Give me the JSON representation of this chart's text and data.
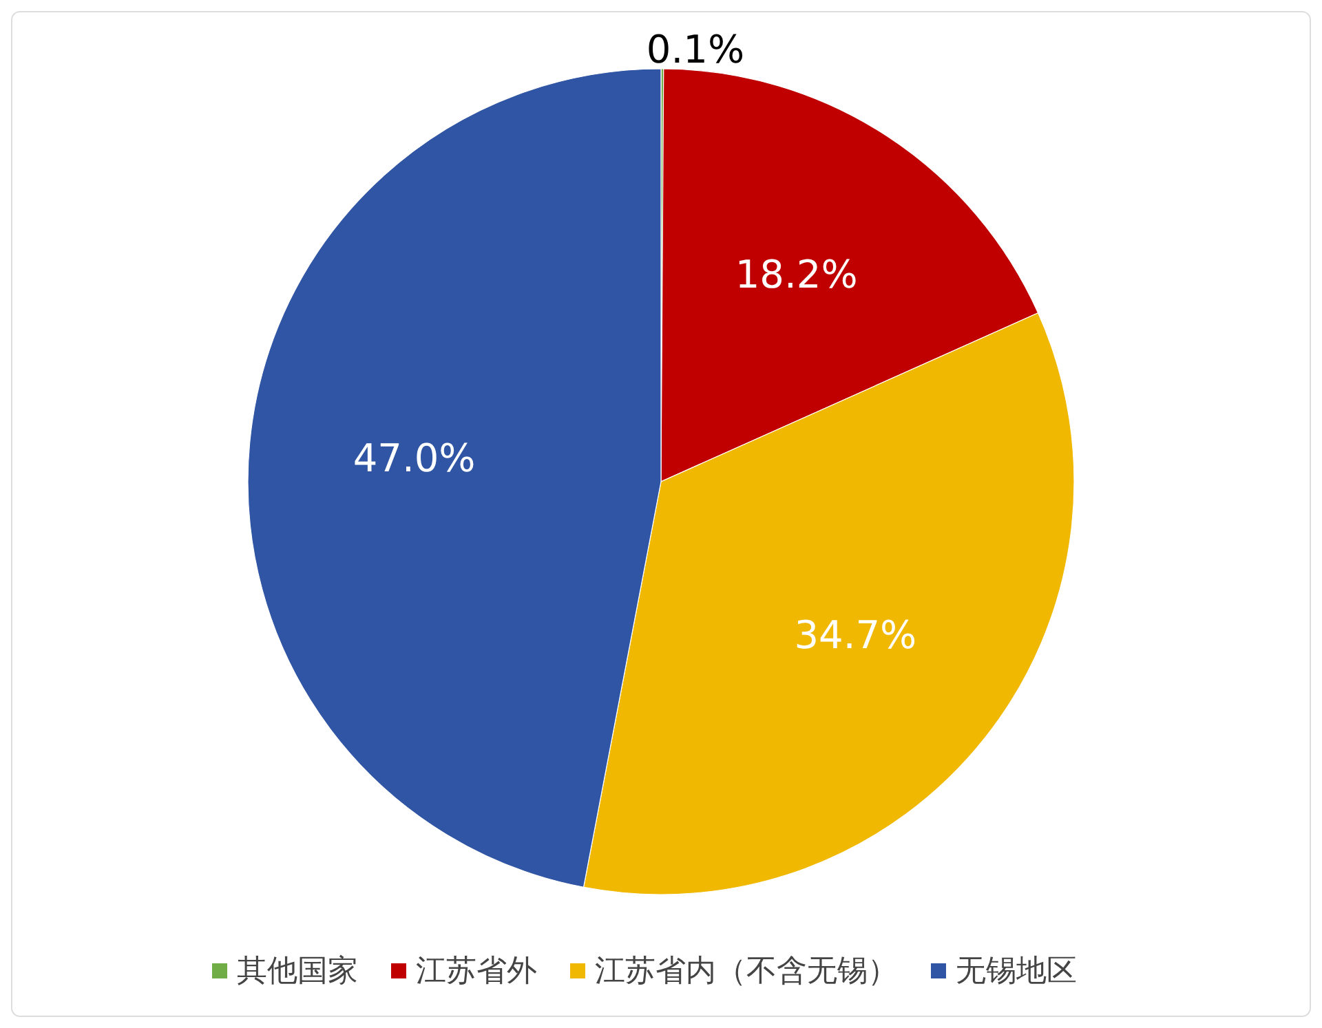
{
  "chart_data": {
    "type": "pie",
    "categories": [
      "其他国家",
      "江苏省外",
      "江苏省内（不含无锡）",
      "无锡地区"
    ],
    "values": [
      0.1,
      18.2,
      34.7,
      47.0
    ],
    "colors": [
      "#70ad47",
      "#c00000",
      "#f0b800",
      "#2f55a4"
    ],
    "value_labels": [
      "0.1%",
      "18.2%",
      "34.7%",
      "47.0%"
    ],
    "legend": "bottom"
  }
}
